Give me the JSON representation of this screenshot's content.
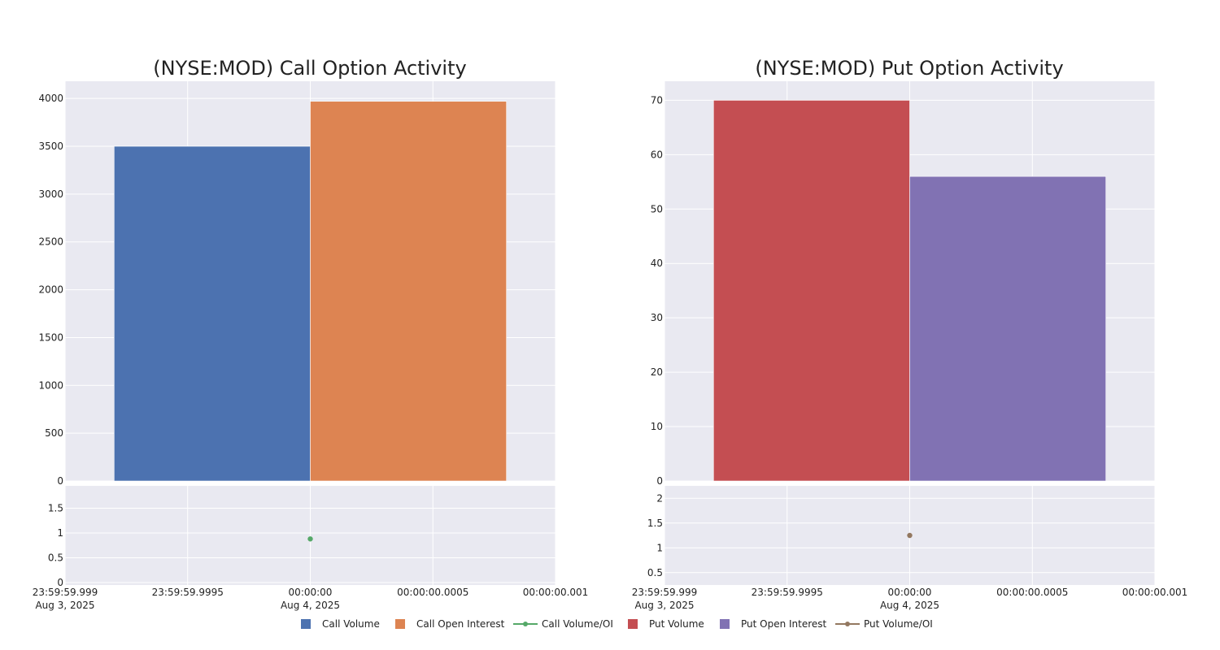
{
  "colors": {
    "background": "#ffffff",
    "plot_bg": "#e9e9f1",
    "grid": "#ffffff",
    "call_volume": "#4c72b0",
    "call_open_interest": "#dd8452",
    "call_ratio": "#55a868",
    "put_volume": "#c44e52",
    "put_open_interest": "#8172b3",
    "put_ratio": "#937860"
  },
  "legend": {
    "position": "bottom-center",
    "items": [
      {
        "label": "Call Volume",
        "marker": "square",
        "color": "#4c72b0"
      },
      {
        "label": "Call Open Interest",
        "marker": "square",
        "color": "#dd8452"
      },
      {
        "label": "Call Volume/OI",
        "marker": "line-dot",
        "color": "#55a868"
      },
      {
        "label": "Put Volume",
        "marker": "square",
        "color": "#c44e52"
      },
      {
        "label": "Put Open Interest",
        "marker": "square",
        "color": "#8172b3"
      },
      {
        "label": "Put Volume/OI",
        "marker": "line-dot",
        "color": "#937860"
      }
    ]
  },
  "chart_data": [
    {
      "type": "bar",
      "title": "(NYSE:MOD) Call Option Activity",
      "grid": true,
      "x_ticks": [
        {
          "time": "23:59:59.999",
          "date": "Aug 3, 2025"
        },
        {
          "time": "23:59:59.9995",
          "date": ""
        },
        {
          "time": "00:00:00",
          "date": "Aug 4, 2025"
        },
        {
          "time": "00:00:00.0005",
          "date": ""
        },
        {
          "time": "00:00:00.001",
          "date": ""
        }
      ],
      "bars": {
        "ylim": [
          0,
          4180
        ],
        "y_ticks": [
          0,
          500,
          1000,
          1500,
          2000,
          2500,
          3000,
          3500,
          4000
        ],
        "series": [
          {
            "name": "Call Volume",
            "color": "#4c72b0",
            "x_range": [
              -0.0008,
              0
            ],
            "value": 3500
          },
          {
            "name": "Call Open Interest",
            "color": "#dd8452",
            "x_range": [
              0,
              0.0008
            ],
            "value": 3970
          }
        ]
      },
      "ratio": {
        "ylim": [
          -0.05,
          1.95
        ],
        "y_ticks": [
          0,
          0.5,
          1,
          1.5
        ],
        "y_tick_labels": [
          "0",
          "0.5",
          "1",
          "1.5"
        ],
        "series": {
          "name": "Call Volume/OI",
          "color": "#55a868",
          "x": 0,
          "value": 0.88
        }
      }
    },
    {
      "type": "bar",
      "title": "(NYSE:MOD) Put Option Activity",
      "grid": true,
      "x_ticks": [
        {
          "time": "23:59:59.999",
          "date": "Aug 3, 2025"
        },
        {
          "time": "23:59:59.9995",
          "date": ""
        },
        {
          "time": "00:00:00",
          "date": "Aug 4, 2025"
        },
        {
          "time": "00:00:00.0005",
          "date": ""
        },
        {
          "time": "00:00:00.001",
          "date": ""
        }
      ],
      "bars": {
        "ylim": [
          0,
          73.5
        ],
        "y_ticks": [
          0,
          10,
          20,
          30,
          40,
          50,
          60,
          70
        ],
        "series": [
          {
            "name": "Put Volume",
            "color": "#c44e52",
            "x_range": [
              -0.0008,
              0
            ],
            "value": 70
          },
          {
            "name": "Put Open Interest",
            "color": "#8172b3",
            "x_range": [
              0,
              0.0008
            ],
            "value": 56
          }
        ]
      },
      "ratio": {
        "ylim": [
          0.25,
          2.25
        ],
        "y_ticks": [
          0.5,
          1,
          1.5,
          2
        ],
        "y_tick_labels": [
          "0.5",
          "1",
          "1.5",
          "2"
        ],
        "series": {
          "name": "Put Volume/OI",
          "color": "#937860",
          "x": 0,
          "value": 1.25
        }
      }
    }
  ]
}
